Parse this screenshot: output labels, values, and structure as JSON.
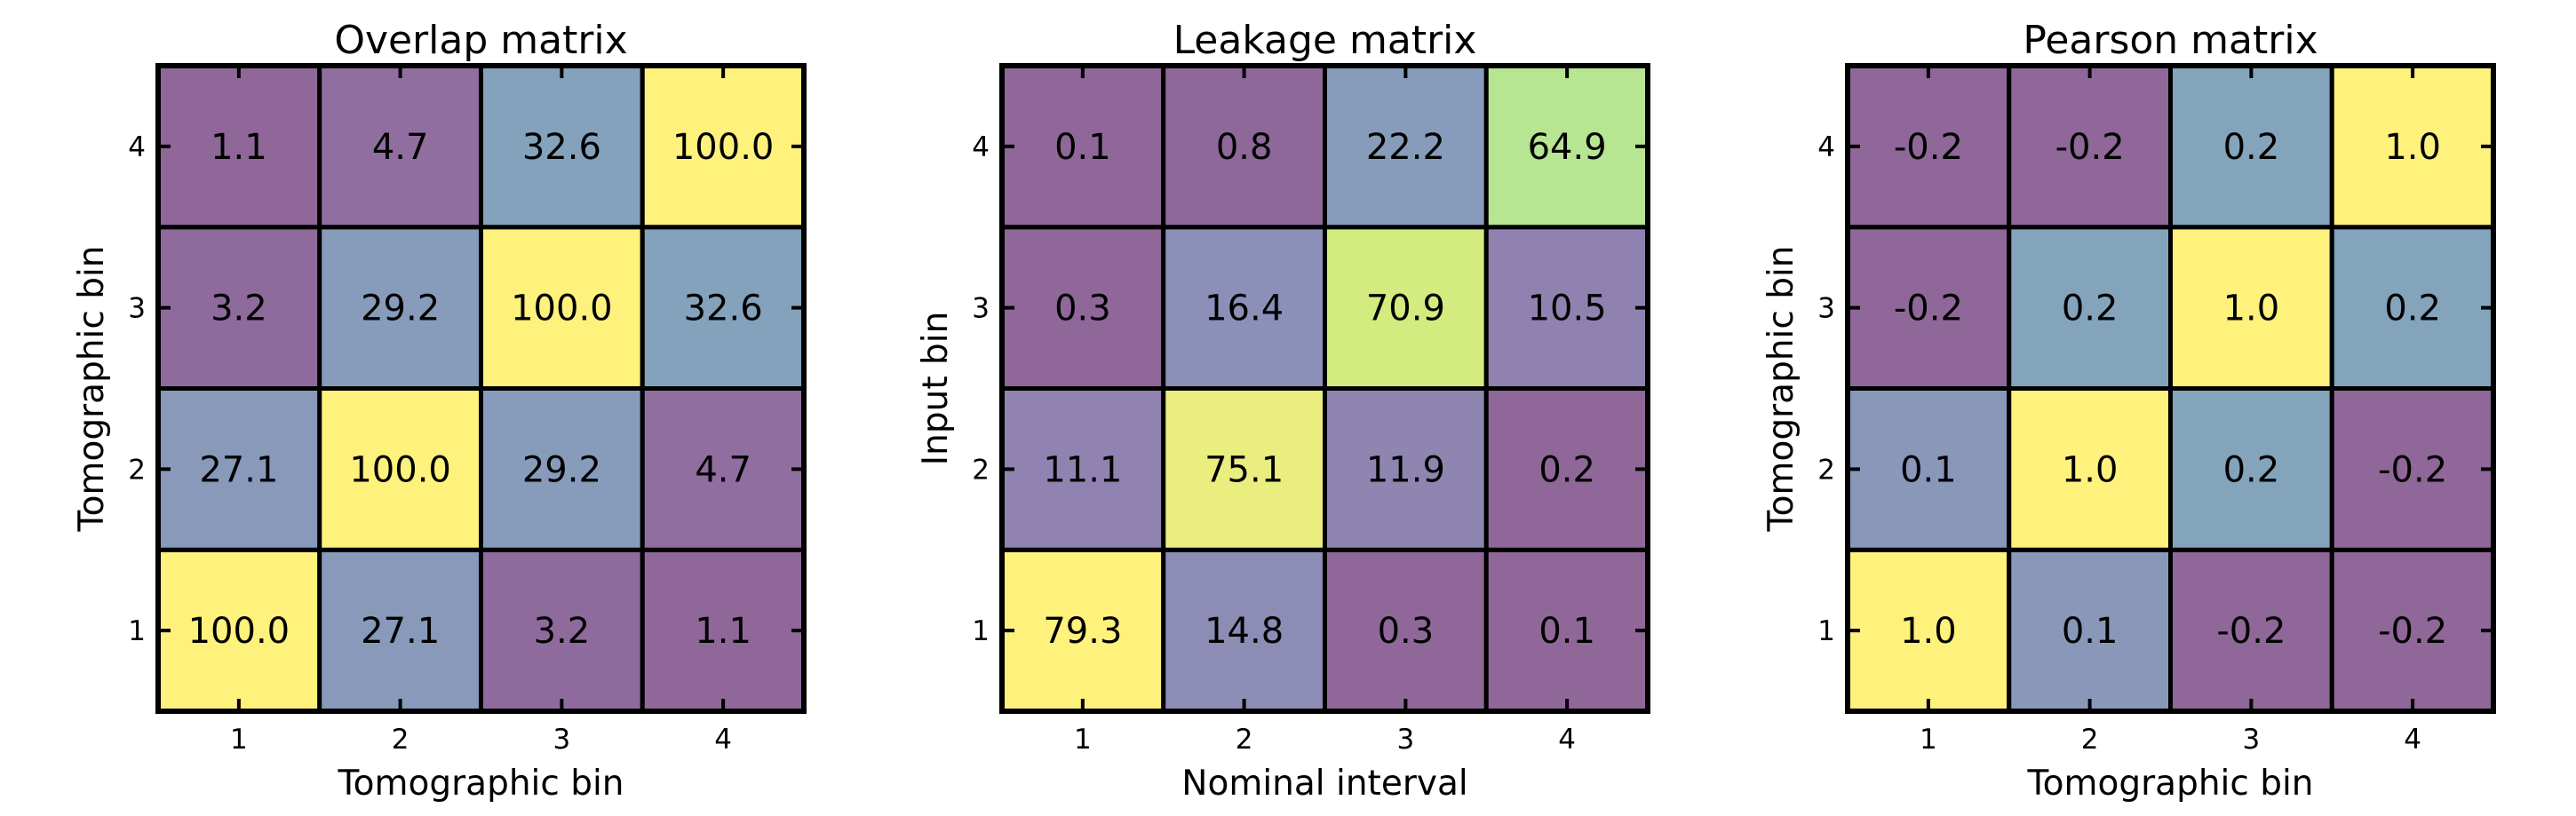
{
  "chart_data": [
    {
      "type": "heatmap",
      "title": "Overlap matrix",
      "xlabel": "Tomographic bin",
      "ylabel": "Tomographic bin",
      "x_ticks": [
        "1",
        "2",
        "3",
        "4"
      ],
      "y_ticks": [
        "1",
        "2",
        "3",
        "4"
      ],
      "colormap": "viridis",
      "values_rows_y1_to_y4": [
        [
          "100.0",
          "27.1",
          "3.2",
          "1.1"
        ],
        [
          "27.1",
          "100.0",
          "29.2",
          "4.7"
        ],
        [
          "3.2",
          "29.2",
          "100.0",
          "32.6"
        ],
        [
          "1.1",
          "4.7",
          "32.6",
          "100.0"
        ]
      ]
    },
    {
      "type": "heatmap",
      "title": "Leakage matrix",
      "xlabel": "Nominal interval",
      "ylabel": "Input bin",
      "x_ticks": [
        "1",
        "2",
        "3",
        "4"
      ],
      "y_ticks": [
        "1",
        "2",
        "3",
        "4"
      ],
      "colormap": "viridis",
      "values_rows_y1_to_y4": [
        [
          "79.3",
          "14.8",
          "0.3",
          "0.1"
        ],
        [
          "11.1",
          "75.1",
          "11.9",
          "0.2"
        ],
        [
          "0.3",
          "16.4",
          "70.9",
          "10.5"
        ],
        [
          "0.1",
          "0.8",
          "22.2",
          "64.9"
        ]
      ]
    },
    {
      "type": "heatmap",
      "title": "Pearson matrix",
      "xlabel": "Tomographic bin",
      "ylabel": "Tomographic bin",
      "x_ticks": [
        "1",
        "2",
        "3",
        "4"
      ],
      "y_ticks": [
        "1",
        "2",
        "3",
        "4"
      ],
      "colormap": "viridis",
      "values_rows_y1_to_y4": [
        [
          "1.0",
          "0.1",
          "-0.2",
          "-0.2"
        ],
        [
          "0.1",
          "1.0",
          "0.2",
          "-0.2"
        ],
        [
          "-0.2",
          "0.2",
          "1.0",
          "0.2"
        ],
        [
          "-0.2",
          "-0.2",
          "0.2",
          "1.0"
        ]
      ]
    }
  ]
}
